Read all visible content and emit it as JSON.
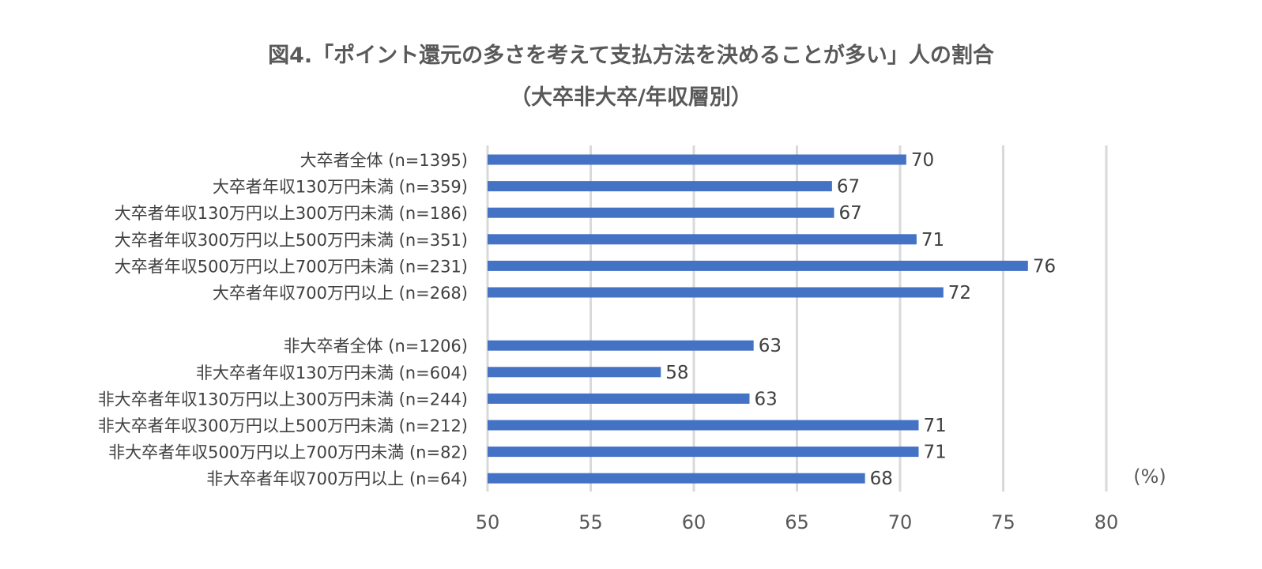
{
  "chart_data": {
    "type": "bar",
    "orientation": "horizontal",
    "title": "図4.「ポイント還元の多さを考えて支払方法を決めることが多い」人の割合",
    "subtitle": "（大卒非大卒/年収層別）",
    "unit_label": "(%)",
    "xlim": [
      50,
      80
    ],
    "x_ticks": [
      "50",
      "55",
      "60",
      "65",
      "70",
      "75",
      "80"
    ],
    "grid": true,
    "legend": "none",
    "bar_color": "#4472C4",
    "groups": [
      {
        "categories": [
          "大卒者全体 (n=1395)",
          "大卒者年収130万円未満 (n=359)",
          "大卒者年収130万円以上300万円未満 (n=186)",
          "大卒者年収300万円以上500万円未満 (n=351)",
          "大卒者年収500万円以上700万円未満 (n=231)",
          "大卒者年収700万円以上 (n=268)"
        ],
        "values": [
          70.3,
          66.7,
          66.8,
          70.8,
          76.2,
          72.1
        ],
        "data_labels": [
          "70",
          "67",
          "67",
          "71",
          "76",
          "72"
        ]
      },
      {
        "categories": [
          "非大卒者全体 (n=1206)",
          "非大卒者年収130万円未満 (n=604)",
          "非大卒者年収130万円以上300万円未満 (n=244)",
          "非大卒者年収300万円以上500万円未満 (n=212)",
          "非大卒者年収500万円以上700万円未満 (n=82)",
          "非大卒者年収700万円以上 (n=64)"
        ],
        "values": [
          62.9,
          58.4,
          62.7,
          70.9,
          70.9,
          68.3
        ],
        "data_labels": [
          "63",
          "58",
          "63",
          "71",
          "71",
          "68"
        ]
      }
    ]
  }
}
